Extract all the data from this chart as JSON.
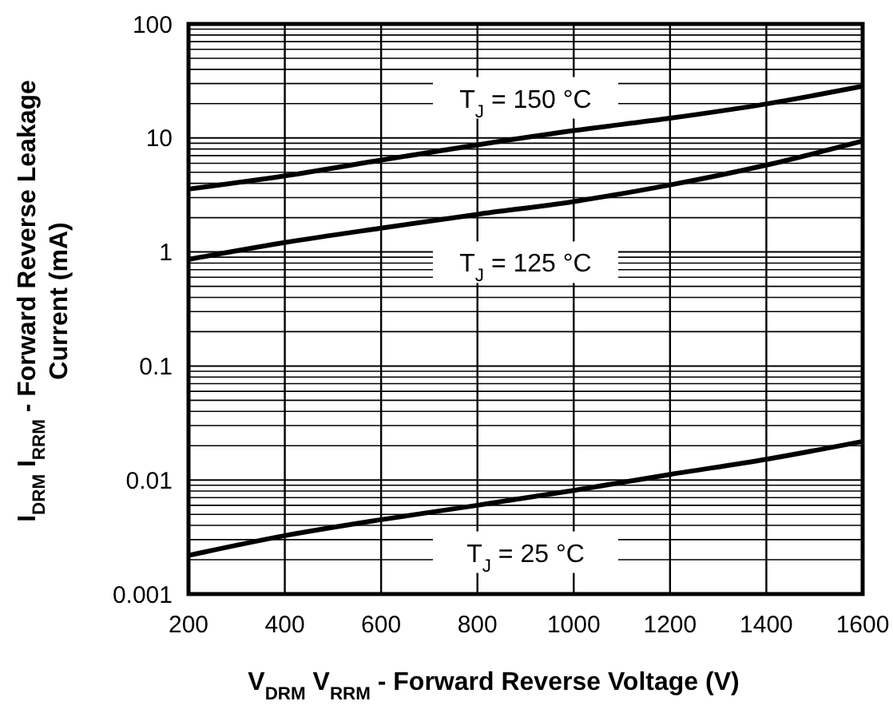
{
  "chart_data": {
    "type": "line",
    "xlabel": "V$_{DRM}$ V$_{RRM}$ - Forward Reverse Voltage (V)",
    "ylabel": "I$_{DRM}$ I$_{RRM}$ - Forward Reverse Leakage\nCurrent (mA)",
    "x": [
      200,
      400,
      600,
      800,
      1000,
      1200,
      1400,
      1600
    ],
    "series": [
      {
        "name": "T$_{J}$ = 150 °C",
        "color": "#000000",
        "values": [
          3.56,
          4.65,
          6.4,
          8.7,
          11.6,
          14.9,
          19.9,
          28.4
        ]
      },
      {
        "name": "T$_{J}$ = 125 °C",
        "color": "#000000",
        "values": [
          0.86,
          1.21,
          1.62,
          2.14,
          2.77,
          3.87,
          5.78,
          9.4
        ]
      },
      {
        "name": "T$_{J}$ = 25 °C",
        "color": "#000000",
        "values": [
          0.00218,
          0.00325,
          0.00449,
          0.006,
          0.0081,
          0.0112,
          0.0152,
          0.0218
        ]
      }
    ],
    "xlim": [
      200,
      1600
    ],
    "ylim": [
      0.001,
      100
    ],
    "xticks": [
      200,
      400,
      600,
      800,
      1000,
      1200,
      1400,
      1600
    ],
    "yticks": [
      0.001,
      0.01,
      0.1,
      1,
      10,
      100
    ],
    "log": "y",
    "grid": true,
    "marker": "none",
    "line_style": "solid"
  }
}
